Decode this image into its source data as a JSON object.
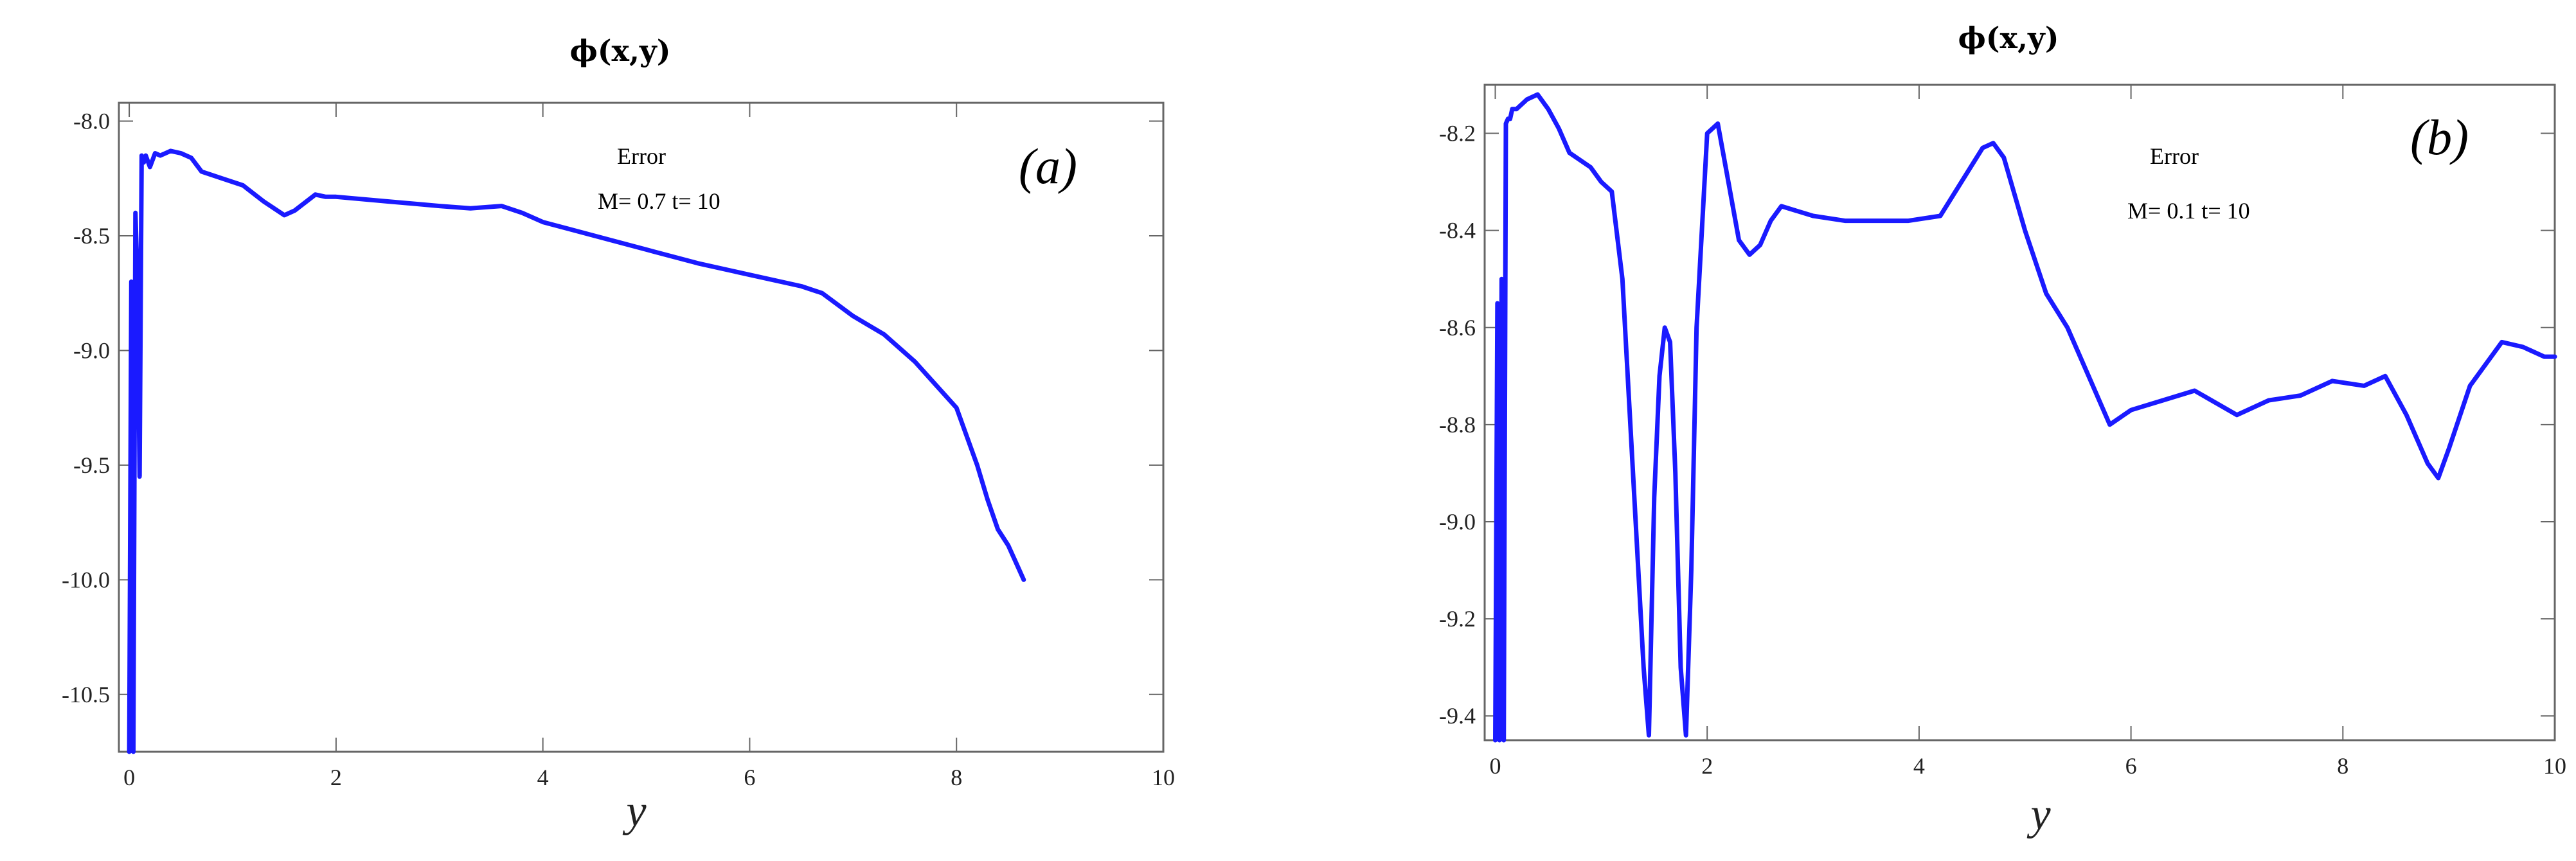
{
  "chart_data": [
    {
      "type": "line",
      "title": "ϕ(x,y)",
      "xlabel": "y",
      "ylabel": "",
      "panel_label": "(a)",
      "annotation": {
        "line1": "Error",
        "line2": "M=  0.7  t= 10"
      },
      "xlim": [
        -0.1,
        10
      ],
      "ylim": [
        -10.75,
        -7.92
      ],
      "xticks": [
        0,
        2,
        4,
        6,
        8,
        10
      ],
      "xtick_labels": [
        "0",
        "2",
        "4",
        "6",
        "8",
        "10"
      ],
      "yticks": [
        -8.0,
        -8.5,
        -9.0,
        -9.5,
        -10.0,
        -10.5
      ],
      "ytick_labels": [
        "-8.0",
        "-8.5",
        "-9.0",
        "-9.5",
        "-10.0",
        "-10.5"
      ],
      "color": "#1a1aff",
      "series": [
        {
          "name": "Error",
          "x": [
            0.0,
            0.02,
            0.04,
            0.06,
            0.08,
            0.1,
            0.12,
            0.14,
            0.16,
            0.2,
            0.25,
            0.3,
            0.4,
            0.5,
            0.6,
            0.7,
            0.9,
            1.1,
            1.3,
            1.5,
            1.6,
            1.8,
            1.9,
            2.0,
            2.5,
            3.0,
            3.3,
            3.6,
            3.8,
            4.0,
            4.5,
            5.0,
            5.5,
            6.0,
            6.5,
            6.7,
            7.0,
            7.3,
            7.6,
            7.8,
            8.0,
            8.2,
            8.3,
            8.4,
            8.5,
            8.6,
            8.65
          ],
          "y": [
            -10.75,
            -8.7,
            -10.75,
            -8.4,
            -8.7,
            -9.55,
            -8.15,
            -8.18,
            -8.15,
            -8.2,
            -8.14,
            -8.15,
            -8.13,
            -8.14,
            -8.16,
            -8.22,
            -8.25,
            -8.28,
            -8.35,
            -8.41,
            -8.39,
            -8.32,
            -8.33,
            -8.33,
            -8.35,
            -8.37,
            -8.38,
            -8.37,
            -8.4,
            -8.44,
            -8.5,
            -8.56,
            -8.62,
            -8.67,
            -8.72,
            -8.75,
            -8.85,
            -8.93,
            -9.05,
            -9.15,
            -9.25,
            -9.5,
            -9.65,
            -9.78,
            -9.85,
            -9.95,
            -10.0
          ]
        }
      ]
    },
    {
      "type": "line",
      "title": "ϕ(x,y)",
      "xlabel": "y",
      "ylabel": "",
      "panel_label": "(b)",
      "annotation": {
        "line1": "Error",
        "line2": "M= 0.1    t= 10"
      },
      "xlim": [
        -0.1,
        10
      ],
      "ylim": [
        -9.45,
        -8.1
      ],
      "xticks": [
        0,
        2,
        4,
        6,
        8,
        10
      ],
      "xtick_labels": [
        "0",
        "2",
        "4",
        "6",
        "8",
        "10"
      ],
      "yticks": [
        -8.2,
        -8.4,
        -8.6,
        -8.8,
        -9.0,
        -9.2,
        -9.4
      ],
      "ytick_labels": [
        "-8.2",
        "-8.4",
        "-8.6",
        "-8.8",
        "-9.0",
        "-9.2",
        "-9.4"
      ],
      "color": "#1a1aff",
      "series": [
        {
          "name": "Error",
          "x": [
            0.0,
            0.02,
            0.04,
            0.06,
            0.08,
            0.1,
            0.12,
            0.14,
            0.16,
            0.2,
            0.3,
            0.4,
            0.5,
            0.6,
            0.7,
            0.9,
            1.0,
            1.1,
            1.2,
            1.3,
            1.4,
            1.45,
            1.5,
            1.55,
            1.6,
            1.65,
            1.7,
            1.75,
            1.8,
            1.85,
            1.9,
            2.0,
            2.1,
            2.2,
            2.3,
            2.4,
            2.5,
            2.6,
            2.7,
            3.0,
            3.3,
            3.6,
            3.9,
            4.2,
            4.4,
            4.6,
            4.7,
            4.8,
            5.0,
            5.2,
            5.4,
            5.6,
            5.8,
            6.0,
            6.3,
            6.6,
            7.0,
            7.3,
            7.6,
            7.9,
            8.2,
            8.4,
            8.6,
            8.8,
            8.9,
            9.0,
            9.2,
            9.5,
            9.7,
            9.9,
            10.0
          ],
          "y": [
            -9.45,
            -8.55,
            -9.45,
            -8.5,
            -9.45,
            -8.18,
            -8.17,
            -8.17,
            -8.15,
            -8.15,
            -8.13,
            -8.12,
            -8.15,
            -8.19,
            -8.24,
            -8.27,
            -8.3,
            -8.32,
            -8.5,
            -8.9,
            -9.3,
            -9.44,
            -8.95,
            -8.7,
            -8.6,
            -8.63,
            -8.9,
            -9.3,
            -9.44,
            -9.1,
            -8.6,
            -8.2,
            -8.18,
            -8.3,
            -8.42,
            -8.45,
            -8.43,
            -8.38,
            -8.35,
            -8.37,
            -8.38,
            -8.38,
            -8.38,
            -8.37,
            -8.3,
            -8.23,
            -8.22,
            -8.25,
            -8.4,
            -8.53,
            -8.6,
            -8.7,
            -8.8,
            -8.77,
            -8.75,
            -8.73,
            -8.78,
            -8.75,
            -8.74,
            -8.71,
            -8.72,
            -8.7,
            -8.78,
            -8.88,
            -8.91,
            -8.85,
            -8.72,
            -8.63,
            -8.64,
            -8.66,
            -8.66
          ]
        }
      ]
    }
  ]
}
